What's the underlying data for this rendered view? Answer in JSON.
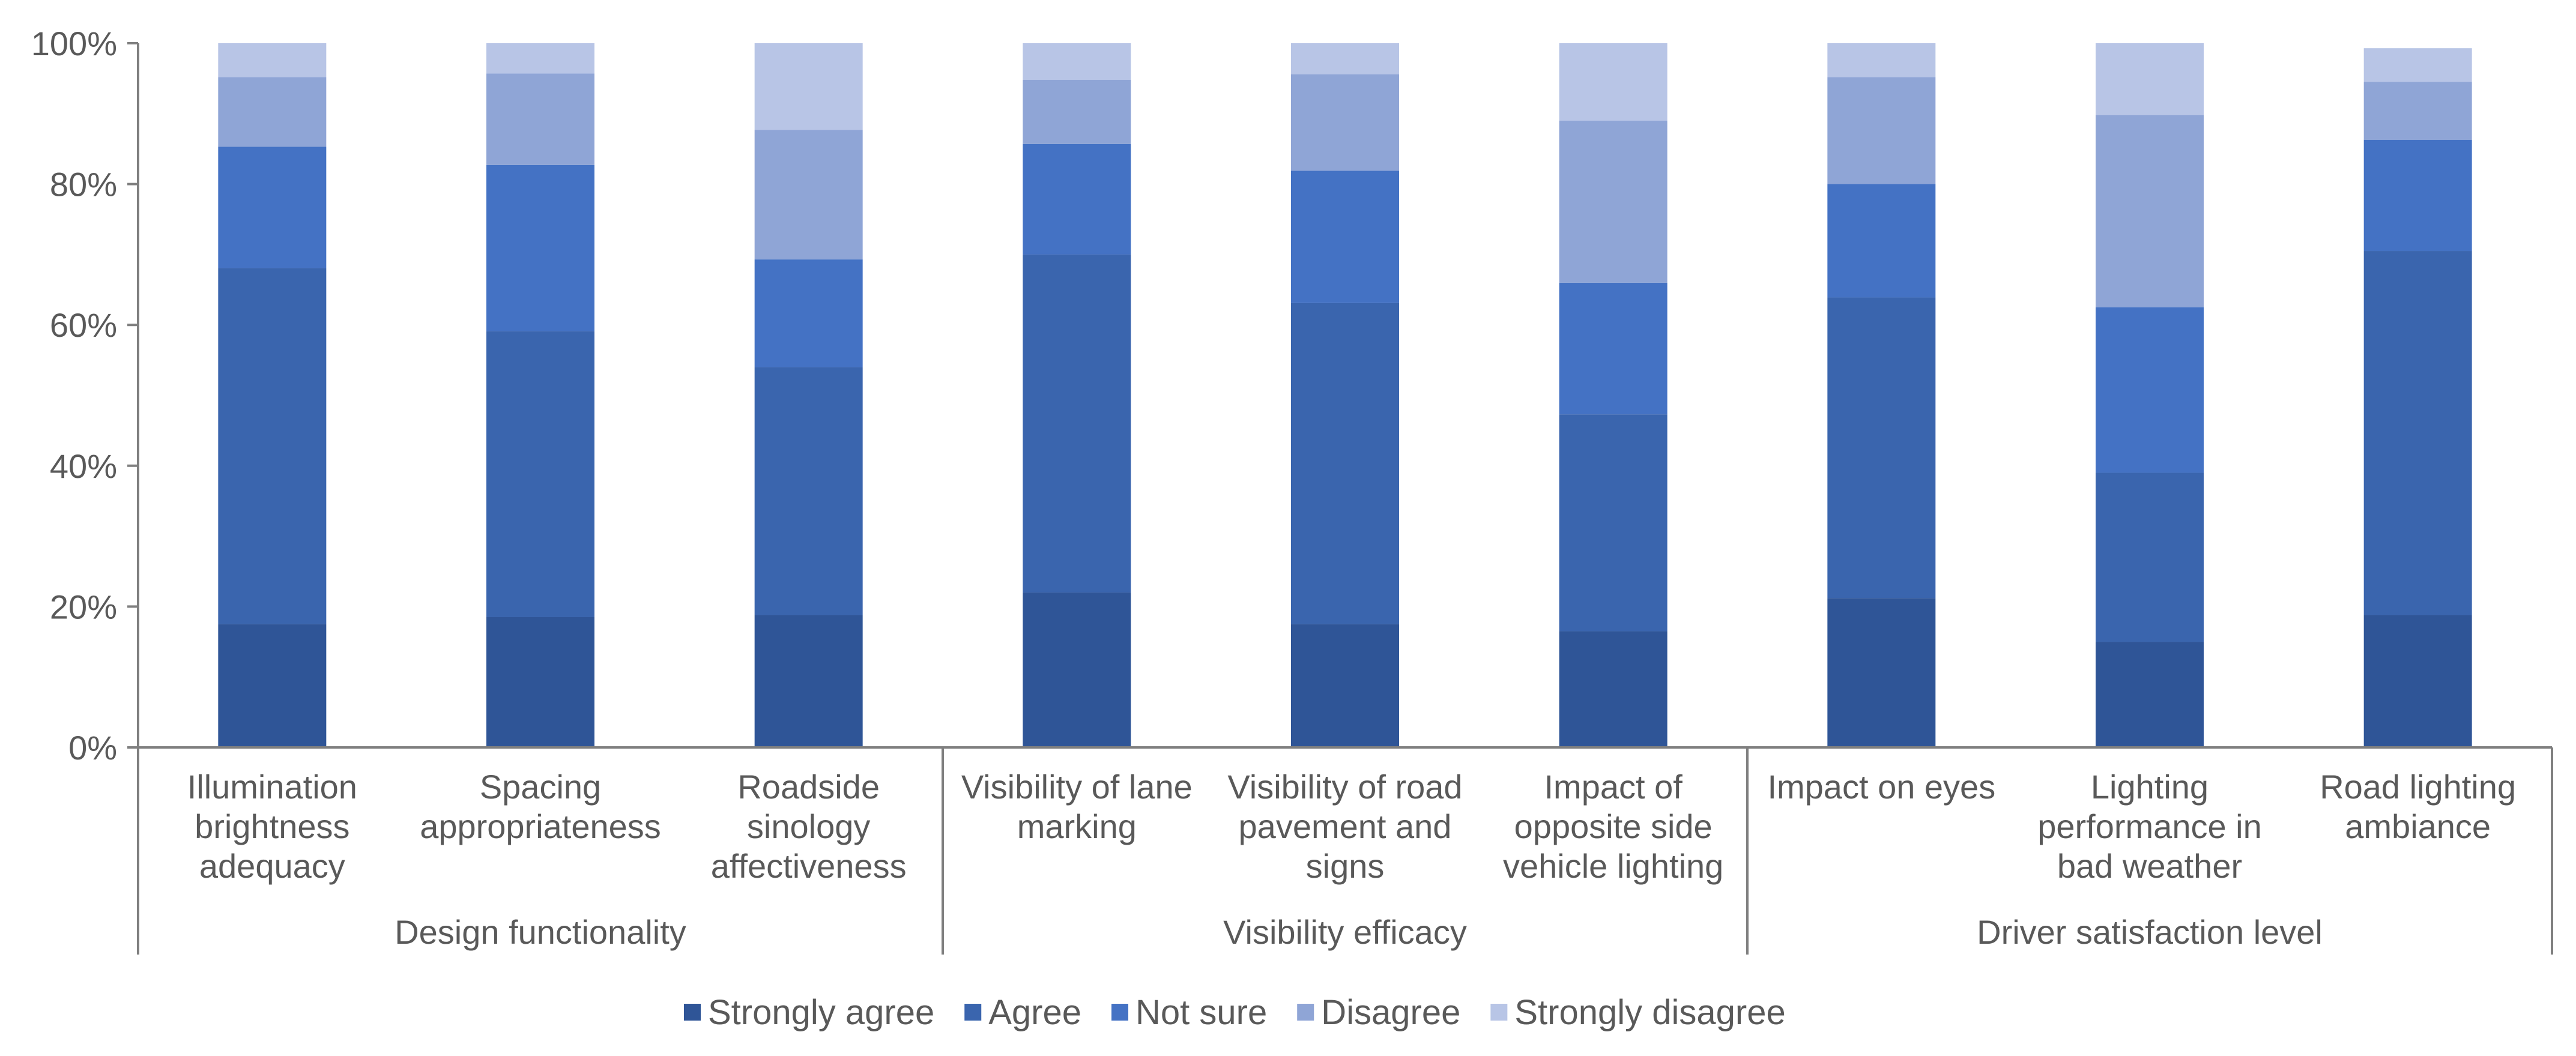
{
  "chart_data": {
    "type": "bar",
    "stacked": true,
    "normalized": true,
    "title": "",
    "xlabel": "",
    "ylabel": "",
    "ylim": [
      0,
      100
    ],
    "yticks": [
      "0%",
      "20%",
      "40%",
      "60%",
      "80%",
      "100%"
    ],
    "groups": [
      {
        "label": "Design functionality",
        "categories": [
          "Illumination brightness adequacy",
          "Spacing appropriateness",
          "Roadside sinology affectiveness"
        ]
      },
      {
        "label": "Visibility efficacy",
        "categories": [
          "Visibility of lane marking",
          "Visibility of road pavement and signs",
          "Impact of opposite side vehicle lighting"
        ]
      },
      {
        "label": "Driver satisfaction level",
        "categories": [
          "Impact on eyes",
          "Lighting performance in bad weather",
          "Road lighting ambiance"
        ]
      }
    ],
    "category_lines": [
      [
        "Illumination",
        "brightness",
        "adequacy"
      ],
      [
        "Spacing",
        "appropriateness"
      ],
      [
        "Roadside",
        "sinology",
        "affectiveness"
      ],
      [
        "Visibility of lane",
        "marking"
      ],
      [
        "Visibility of road",
        "pavement and",
        "signs"
      ],
      [
        "Impact of",
        "opposite side",
        "vehicle lighting"
      ],
      [
        "Impact on eyes"
      ],
      [
        "Lighting",
        "performance in",
        "bad weather"
      ],
      [
        "Road lighting",
        "ambiance"
      ]
    ],
    "categories": [
      "Illumination brightness adequacy",
      "Spacing appropriateness",
      "Roadside sinology affectiveness",
      "Visibility of lane marking",
      "Visibility of road pavement and signs",
      "Impact of opposite side vehicle lighting",
      "Impact on eyes",
      "Lighting performance in bad weather",
      "Road lighting ambiance"
    ],
    "series": [
      {
        "name": "Strongly agree",
        "color": "#2f5597",
        "values": [
          17.5,
          18.5,
          18.8,
          22.0,
          17.5,
          16.5,
          21.2,
          15.0,
          18.8
        ]
      },
      {
        "name": "Agree",
        "color": "#3a65ae",
        "values": [
          50.6,
          40.6,
          35.2,
          48.0,
          45.6,
          30.8,
          42.7,
          24.0,
          51.7
        ]
      },
      {
        "name": "Not sure",
        "color": "#4472c4",
        "values": [
          17.2,
          23.6,
          15.3,
          15.7,
          18.8,
          18.7,
          16.1,
          23.5,
          15.8
        ]
      },
      {
        "name": "Disagree",
        "color": "#8fa5d6",
        "values": [
          9.9,
          13.0,
          18.4,
          9.1,
          13.7,
          23.0,
          15.2,
          27.3,
          8.2
        ]
      },
      {
        "name": "Strongly disagree",
        "color": "#b8c5e6",
        "values": [
          4.8,
          4.3,
          12.3,
          5.2,
          4.4,
          11.0,
          4.8,
          10.2,
          4.8
        ]
      }
    ],
    "legend": "bottom",
    "grid": false
  }
}
